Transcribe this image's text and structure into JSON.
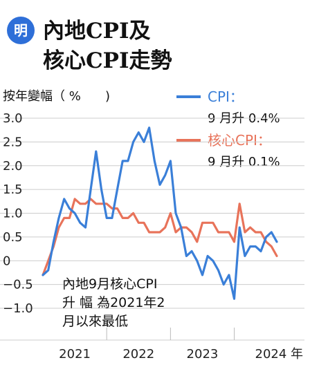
{
  "logo": {
    "text": "明"
  },
  "title": {
    "line1": "內地CPI及",
    "line2": "核心CPI走勢"
  },
  "chart_data": {
    "type": "line",
    "ylabel": "按年變幅（ %",
    "ylabel_close": ")",
    "ylim": [
      -1.0,
      3.0
    ],
    "yticks": [
      -1.0,
      -0.5,
      0,
      0.5,
      1.0,
      1.5,
      2.0,
      2.5,
      3.0
    ],
    "ytick_labels": [
      "−1.0",
      "−0.5",
      "0",
      "0.5",
      "1.0",
      "1.5",
      "2.0",
      "2.5",
      "3.0"
    ],
    "x_start": "2021-01",
    "x_end": "2024-09",
    "xtick_labels": [
      "2021",
      "2022",
      "2023",
      "2024 年"
    ],
    "grid": true,
    "legend_position": "top-right",
    "series": [
      {
        "name": "CPI：",
        "note": "9 月升 0.4%",
        "color": "#3a7fd8",
        "x": [
          "2021-01",
          "2021-02",
          "2021-03",
          "2021-04",
          "2021-05",
          "2021-06",
          "2021-07",
          "2021-08",
          "2021-09",
          "2021-10",
          "2021-11",
          "2021-12",
          "2022-01",
          "2022-02",
          "2022-03",
          "2022-04",
          "2022-05",
          "2022-06",
          "2022-07",
          "2022-08",
          "2022-09",
          "2022-10",
          "2022-11",
          "2022-12",
          "2023-01",
          "2023-02",
          "2023-03",
          "2023-04",
          "2023-05",
          "2023-06",
          "2023-07",
          "2023-08",
          "2023-09",
          "2023-10",
          "2023-11",
          "2023-12",
          "2024-01",
          "2024-02",
          "2024-03",
          "2024-04",
          "2024-05",
          "2024-06",
          "2024-07",
          "2024-08",
          "2024-09"
        ],
        "values": [
          -0.3,
          -0.2,
          0.4,
          0.9,
          1.3,
          1.1,
          1.0,
          0.8,
          0.7,
          1.5,
          2.3,
          1.5,
          0.9,
          0.9,
          1.5,
          2.1,
          2.1,
          2.5,
          2.7,
          2.5,
          2.8,
          2.1,
          1.6,
          1.8,
          2.1,
          1.0,
          0.7,
          0.1,
          0.2,
          0.0,
          -0.3,
          0.1,
          0.0,
          -0.2,
          -0.5,
          -0.3,
          -0.8,
          0.7,
          0.1,
          0.3,
          0.3,
          0.2,
          0.5,
          0.6,
          0.4
        ]
      },
      {
        "name": "核心CPI：",
        "note": "9 月升 0.1%",
        "color": "#e8735a",
        "x": [
          "2021-01",
          "2021-02",
          "2021-03",
          "2021-04",
          "2021-05",
          "2021-06",
          "2021-07",
          "2021-08",
          "2021-09",
          "2021-10",
          "2021-11",
          "2021-12",
          "2022-01",
          "2022-02",
          "2022-03",
          "2022-04",
          "2022-05",
          "2022-06",
          "2022-07",
          "2022-08",
          "2022-09",
          "2022-10",
          "2022-11",
          "2022-12",
          "2023-01",
          "2023-02",
          "2023-03",
          "2023-04",
          "2023-05",
          "2023-06",
          "2023-07",
          "2023-08",
          "2023-09",
          "2023-10",
          "2023-11",
          "2023-12",
          "2024-01",
          "2024-02",
          "2024-03",
          "2024-04",
          "2024-05",
          "2024-06",
          "2024-07",
          "2024-08",
          "2024-09"
        ],
        "values": [
          -0.3,
          0.0,
          0.3,
          0.7,
          0.9,
          0.9,
          1.3,
          1.2,
          1.2,
          1.3,
          1.2,
          1.2,
          1.2,
          1.1,
          1.1,
          0.9,
          0.9,
          1.0,
          0.8,
          0.8,
          0.6,
          0.6,
          0.6,
          0.7,
          1.0,
          0.6,
          0.7,
          0.7,
          0.6,
          0.4,
          0.8,
          0.8,
          0.8,
          0.6,
          0.6,
          0.6,
          0.4,
          1.2,
          0.6,
          0.7,
          0.6,
          0.6,
          0.4,
          0.3,
          0.1
        ]
      }
    ],
    "annotation": {
      "lines": [
        "內地9月核心CPI",
        "升 幅 為2021年2",
        "月以來最低"
      ]
    }
  }
}
